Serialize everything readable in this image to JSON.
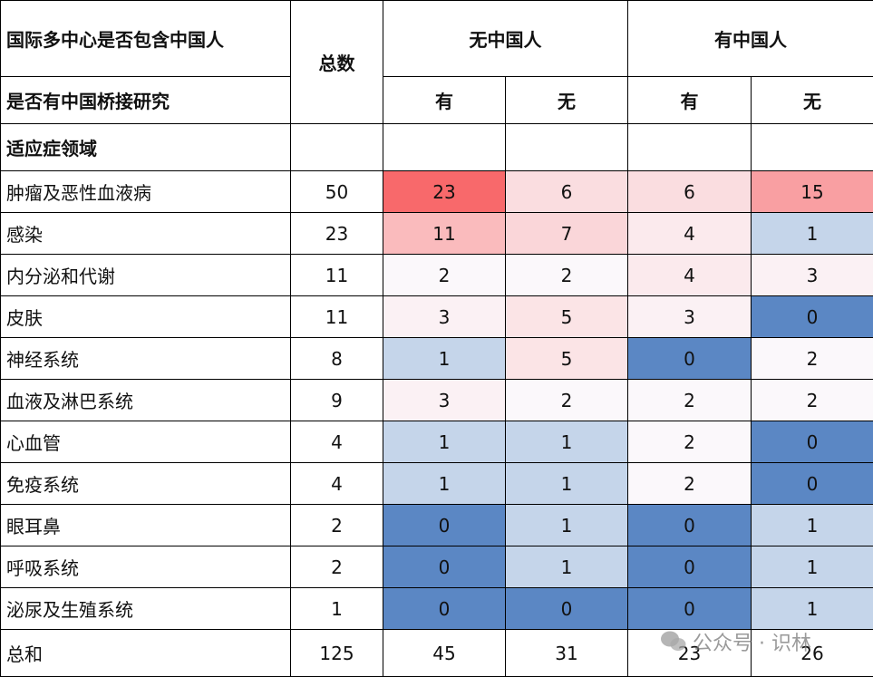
{
  "header": {
    "row1_label": "国际多中心是否包含中国人",
    "row2_label": "是否有中国桥接研究",
    "row3_label": "适应症领域",
    "total_label": "总数",
    "group_no_chinese": "无中国人",
    "group_with_chinese": "有中国人",
    "sub_labels": [
      "有",
      "无",
      "有",
      "无"
    ]
  },
  "rows": [
    {
      "name": "肿瘤及恶性血液病",
      "total": 50,
      "values": [
        23,
        6,
        6,
        15
      ]
    },
    {
      "name": "感染",
      "total": 23,
      "values": [
        11,
        7,
        4,
        1
      ]
    },
    {
      "name": "内分泌和代谢",
      "total": 11,
      "values": [
        2,
        2,
        4,
        3
      ]
    },
    {
      "name": "皮肤",
      "total": 11,
      "values": [
        3,
        5,
        3,
        0
      ]
    },
    {
      "name": "神经系统",
      "total": 8,
      "values": [
        1,
        5,
        0,
        2
      ]
    },
    {
      "name": "血液及淋巴系统",
      "total": 9,
      "values": [
        3,
        2,
        2,
        2
      ]
    },
    {
      "name": "心血管",
      "total": 4,
      "values": [
        1,
        1,
        2,
        0
      ]
    },
    {
      "name": "免疫系统",
      "total": 4,
      "values": [
        1,
        1,
        2,
        0
      ]
    },
    {
      "name": "眼耳鼻",
      "total": 2,
      "values": [
        0,
        1,
        0,
        1
      ]
    },
    {
      "name": "呼吸系统",
      "total": 2,
      "values": [
        0,
        1,
        0,
        1
      ]
    },
    {
      "name": "泌尿及生殖系统",
      "total": 1,
      "values": [
        0,
        0,
        0,
        1
      ]
    }
  ],
  "sum_row": {
    "name": "总和",
    "total": 125,
    "values": [
      45,
      31,
      23,
      26
    ]
  },
  "heatmap_colors": {
    "low": "#5b87c4",
    "one": "#c5d5ea",
    "mid": "#fbf8fb",
    "high": "#f8696b"
  },
  "watermark": "公众号 · 识林"
}
